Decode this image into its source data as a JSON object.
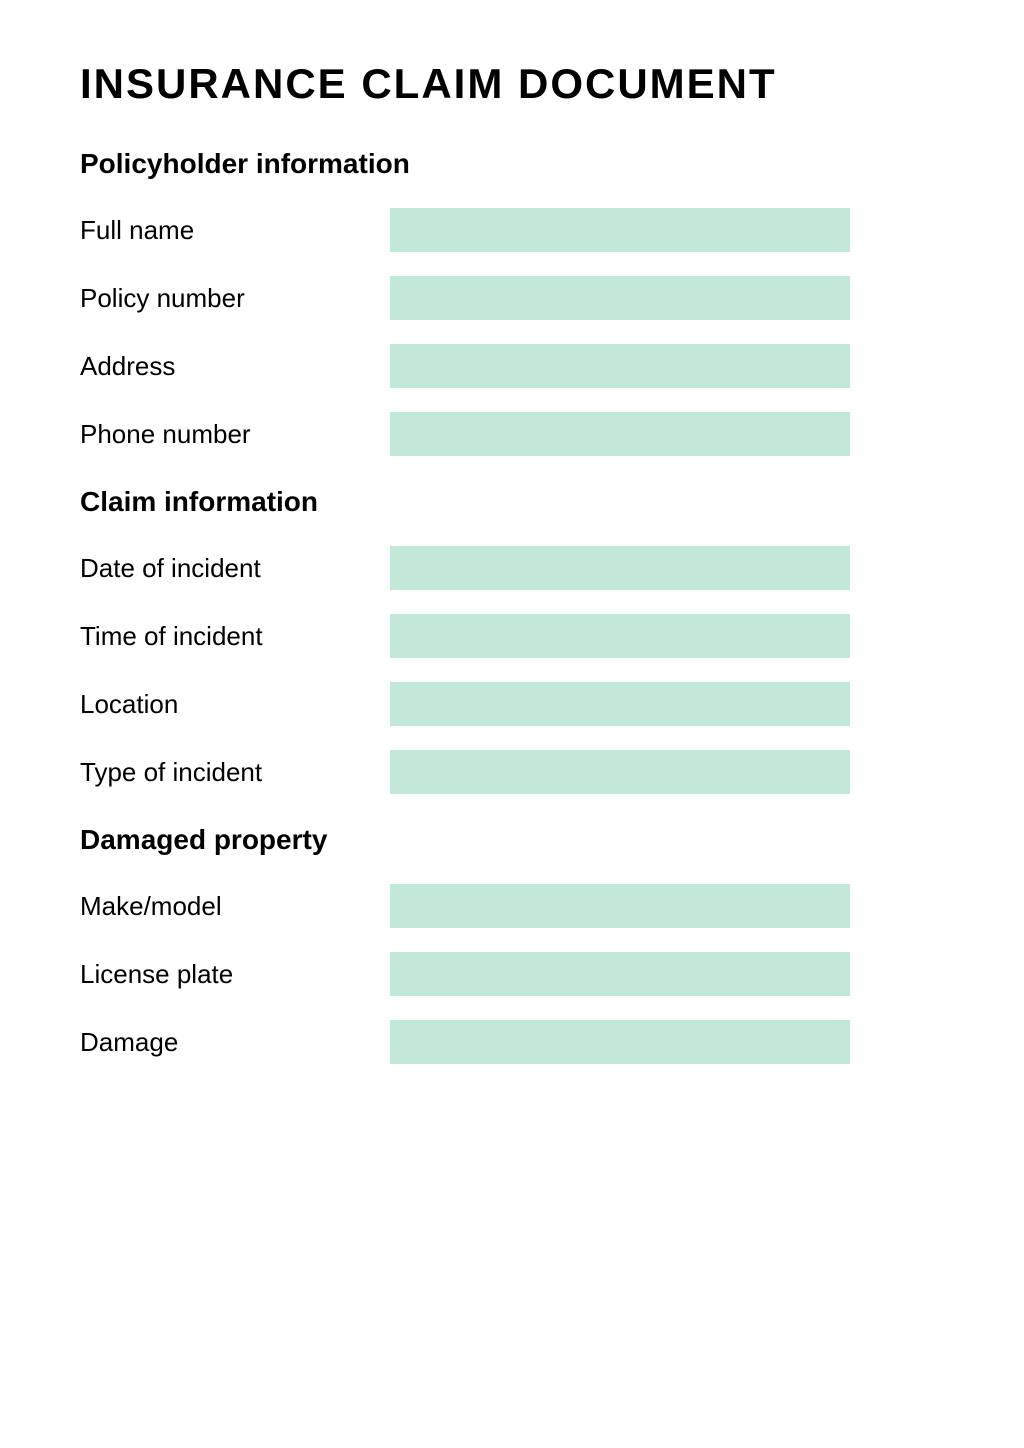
{
  "title": "INSURANCE CLAIM DOCUMENT",
  "colors": {
    "input_background": "#c2e8d8",
    "text": "#000000",
    "background": "#ffffff"
  },
  "typography": {
    "title_fontsize": 42,
    "title_weight": 900,
    "section_header_fontsize": 28,
    "section_header_weight": 700,
    "label_fontsize": 26,
    "label_weight": 400
  },
  "sections": {
    "policyholder": {
      "header": "Policyholder information",
      "fields": {
        "full_name": {
          "label": "Full name",
          "value": ""
        },
        "policy_number": {
          "label": "Policy number",
          "value": ""
        },
        "address": {
          "label": "Address",
          "value": ""
        },
        "phone_number": {
          "label": "Phone number",
          "value": ""
        }
      }
    },
    "claim": {
      "header": "Claim information",
      "fields": {
        "date_of_incident": {
          "label": "Date of incident",
          "value": ""
        },
        "time_of_incident": {
          "label": "Time of incident",
          "value": ""
        },
        "location": {
          "label": "Location",
          "value": ""
        },
        "type_of_incident": {
          "label": "Type of incident",
          "value": ""
        }
      }
    },
    "damaged_property": {
      "header": "Damaged property",
      "fields": {
        "make_model": {
          "label": "Make/model",
          "value": ""
        },
        "license_plate": {
          "label": "License plate",
          "value": ""
        },
        "damage": {
          "label": "Damage",
          "value": ""
        }
      }
    }
  }
}
